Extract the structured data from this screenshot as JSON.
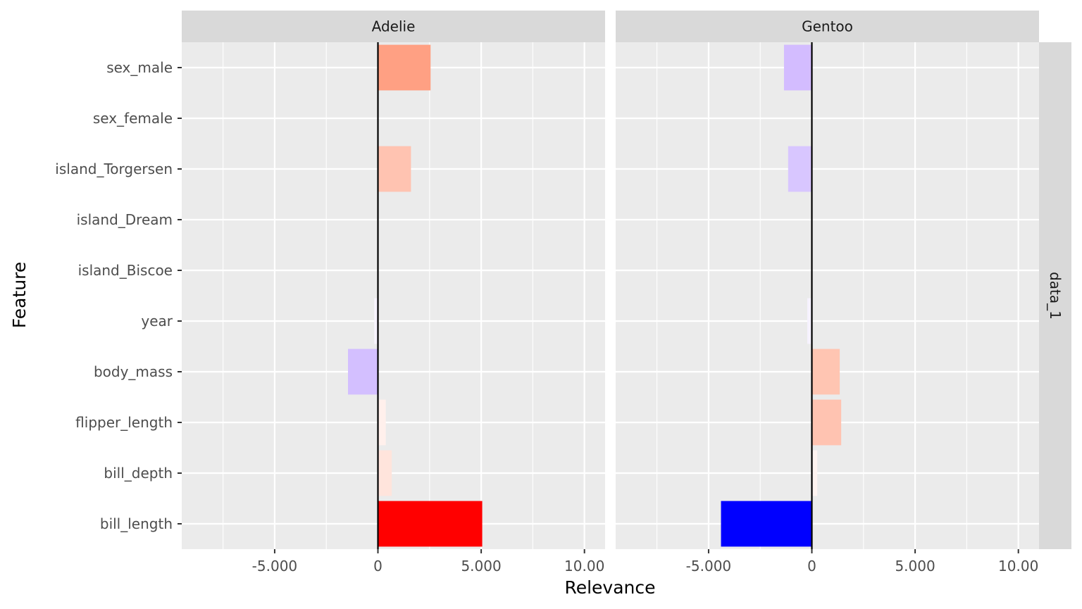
{
  "chart_data": {
    "type": "bar",
    "orientation": "horizontal",
    "xlabel": "Relevance",
    "ylabel": "Feature",
    "row_strip": "data_1",
    "categories": [
      "sex_male",
      "sex_female",
      "island_Torgersen",
      "island_Dream",
      "island_Biscoe",
      "year",
      "body_mass",
      "flipper_length",
      "bill_depth",
      "bill_length"
    ],
    "xlim": [
      -9.5,
      11
    ],
    "x_ticks": [
      -5,
      0,
      5,
      10
    ],
    "x_tick_labels": [
      "-5.000",
      "0",
      "5.000",
      "10.00"
    ],
    "grid": true,
    "color_scale": {
      "negative": "#0000ff",
      "mid": "#ffffff",
      "positive": "#ff0000"
    },
    "panels": [
      {
        "name": "Adelie",
        "values": [
          2.55,
          0,
          1.6,
          0,
          0,
          -0.18,
          -1.45,
          0.38,
          0.67,
          5.05
        ],
        "colors": [
          "#ffa083",
          "#ffffff",
          "#ffc3b1",
          "#ffffff",
          "#ffffff",
          "#f8f4ff",
          "#d3bfff",
          "#fff0ec",
          "#ffe4dc",
          "#ff0000"
        ]
      },
      {
        "name": "Gentoo",
        "values": [
          -1.35,
          0,
          -1.15,
          0,
          0,
          -0.22,
          1.35,
          1.42,
          0.26,
          -4.4
        ],
        "colors": [
          "#d3bcff",
          "#ffffff",
          "#d8c6ff",
          "#ffffff",
          "#ffffff",
          "#f6f2ff",
          "#ffc5b2",
          "#ffc3b1",
          "#fff4f1",
          "#0000ff"
        ]
      }
    ]
  }
}
